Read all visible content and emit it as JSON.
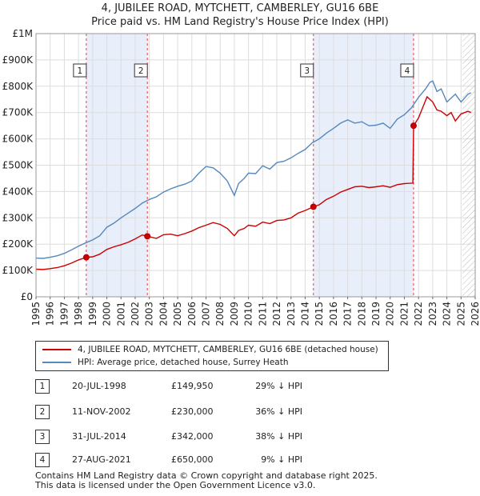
{
  "chart_data": {
    "type": "line",
    "title": "4, JUBILEE ROAD, MYTCHETT, CAMBERLEY, GU16 6BE",
    "subtitle": "Price paid vs. HM Land Registry's House Price Index (HPI)",
    "xlim": [
      1995,
      2026
    ],
    "ylim": [
      0,
      1000000
    ],
    "yticks": [
      0,
      100000,
      200000,
      300000,
      400000,
      500000,
      600000,
      700000,
      800000,
      900000,
      1000000
    ],
    "ytick_labels": [
      "£0",
      "£100K",
      "£200K",
      "£300K",
      "£400K",
      "£500K",
      "£600K",
      "£700K",
      "£800K",
      "£900K",
      "£1M"
    ],
    "xticks": [
      "1995",
      "1996",
      "1997",
      "1998",
      "1999",
      "2000",
      "2001",
      "2002",
      "2003",
      "2004",
      "2005",
      "2006",
      "2007",
      "2008",
      "2009",
      "2010",
      "2011",
      "2012",
      "2013",
      "2014",
      "2015",
      "2016",
      "2017",
      "2018",
      "2019",
      "2020",
      "2021",
      "2022",
      "2023",
      "2024",
      "2025",
      "2026"
    ],
    "shaded_periods": [
      [
        1998.55,
        2002.86
      ],
      [
        2014.58,
        2021.65
      ]
    ],
    "forecast_start": 2025.1,
    "series": [
      {
        "name": "4, JUBILEE ROAD, MYTCHETT, CAMBERLEY, GU16 6BE (detached house)",
        "color": "#cc0000",
        "x": [
          1995.0,
          1995.5,
          1996.0,
          1996.5,
          1997.0,
          1997.5,
          1998.0,
          1998.55,
          1999.0,
          1999.5,
          2000.0,
          2000.5,
          2001.0,
          2001.5,
          2002.0,
          2002.5,
          2002.86,
          2003.5,
          2004.0,
          2004.5,
          2005.0,
          2005.5,
          2006.0,
          2006.5,
          2007.0,
          2007.5,
          2008.0,
          2008.5,
          2009.0,
          2009.3,
          2009.7,
          2010.0,
          2010.5,
          2011.0,
          2011.5,
          2012.0,
          2012.5,
          2013.0,
          2013.5,
          2014.0,
          2014.58,
          2015.0,
          2015.5,
          2016.0,
          2016.5,
          2017.0,
          2017.5,
          2018.0,
          2018.5,
          2019.0,
          2019.5,
          2020.0,
          2020.5,
          2021.0,
          2021.6,
          2021.65,
          2022.0,
          2022.3,
          2022.6,
          2023.0,
          2023.3,
          2023.6,
          2024.0,
          2024.3,
          2024.6,
          2025.0,
          2025.5,
          2025.7
        ],
        "y": [
          105000,
          104000,
          107000,
          111000,
          118000,
          128000,
          140000,
          149950,
          152000,
          162000,
          180000,
          190000,
          198000,
          207000,
          220000,
          235000,
          230000,
          222000,
          236000,
          238000,
          232000,
          240000,
          250000,
          263000,
          272000,
          282000,
          275000,
          260000,
          232000,
          252000,
          260000,
          272000,
          268000,
          284000,
          278000,
          290000,
          292000,
          300000,
          318000,
          328000,
          342000,
          350000,
          370000,
          382000,
          398000,
          408000,
          418000,
          420000,
          415000,
          418000,
          422000,
          416000,
          426000,
          430000,
          432000,
          650000,
          680000,
          720000,
          760000,
          740000,
          710000,
          705000,
          688000,
          700000,
          668000,
          695000,
          705000,
          700000
        ]
      },
      {
        "name": "HPI: Average price, detached house, Surrey Heath",
        "color": "#5588bb",
        "x": [
          1995.0,
          1995.5,
          1996.0,
          1996.5,
          1997.0,
          1997.5,
          1998.0,
          1998.55,
          1999.0,
          1999.5,
          2000.0,
          2000.5,
          2001.0,
          2001.5,
          2002.0,
          2002.5,
          2003.0,
          2003.5,
          2004.0,
          2004.5,
          2005.0,
          2005.5,
          2006.0,
          2006.5,
          2007.0,
          2007.5,
          2008.0,
          2008.5,
          2009.0,
          2009.3,
          2009.7,
          2010.0,
          2010.5,
          2011.0,
          2011.5,
          2012.0,
          2012.5,
          2013.0,
          2013.5,
          2014.0,
          2014.5,
          2015.0,
          2015.5,
          2016.0,
          2016.5,
          2017.0,
          2017.5,
          2018.0,
          2018.5,
          2019.0,
          2019.5,
          2020.0,
          2020.5,
          2021.0,
          2021.5,
          2022.0,
          2022.5,
          2022.8,
          2023.0,
          2023.3,
          2023.6,
          2024.0,
          2024.3,
          2024.6,
          2025.0,
          2025.5,
          2025.7
        ],
        "y": [
          147000,
          146000,
          150000,
          156000,
          165000,
          178000,
          192000,
          206000,
          216000,
          232000,
          264000,
          280000,
          300000,
          318000,
          336000,
          356000,
          370000,
          380000,
          398000,
          410000,
          420000,
          428000,
          440000,
          470000,
          495000,
          490000,
          470000,
          440000,
          385000,
          430000,
          450000,
          470000,
          468000,
          498000,
          485000,
          510000,
          515000,
          528000,
          545000,
          560000,
          585000,
          600000,
          622000,
          640000,
          660000,
          672000,
          660000,
          665000,
          650000,
          652000,
          660000,
          640000,
          675000,
          692000,
          718000,
          758000,
          790000,
          815000,
          820000,
          780000,
          790000,
          740000,
          755000,
          770000,
          740000,
          770000,
          775000
        ]
      }
    ],
    "transactions": [
      {
        "label": "1",
        "x": 1998.55,
        "y": 149950
      },
      {
        "label": "2",
        "x": 2002.86,
        "y": 230000
      },
      {
        "label": "3",
        "x": 2014.58,
        "y": 342000
      },
      {
        "label": "4",
        "x": 2021.65,
        "y": 650000
      }
    ]
  },
  "page": {
    "title": "4, JUBILEE ROAD, MYTCHETT, CAMBERLEY, GU16 6BE",
    "subtitle": "Price paid vs. HM Land Registry's House Price Index (HPI)"
  },
  "legend": {
    "property_label": "4, JUBILEE ROAD, MYTCHETT, CAMBERLEY, GU16 6BE (detached house)",
    "hpi_label": "HPI: Average price, detached house, Surrey Heath",
    "property_color": "#cc0000",
    "hpi_color": "#5588bb"
  },
  "transactions_table": [
    {
      "num": "1",
      "date": "20-JUL-1998",
      "price": "£149,950",
      "hpi": "29% ↓ HPI"
    },
    {
      "num": "2",
      "date": "11-NOV-2002",
      "price": "£230,000",
      "hpi": "36% ↓ HPI"
    },
    {
      "num": "3",
      "date": "31-JUL-2014",
      "price": "£342,000",
      "hpi": "38% ↓ HPI"
    },
    {
      "num": "4",
      "date": "27-AUG-2021",
      "price": "£650,000",
      "hpi": "9% ↓ HPI"
    }
  ],
  "footer": {
    "line1": "Contains HM Land Registry data © Crown copyright and database right 2025.",
    "line2": "This data is licensed under the Open Government Licence v3.0."
  }
}
